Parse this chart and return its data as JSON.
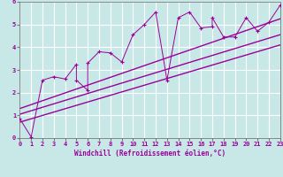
{
  "scatter_x": [
    0,
    1,
    2,
    3,
    4,
    5,
    5,
    6,
    6,
    7,
    8,
    9,
    10,
    11,
    12,
    13,
    14,
    15,
    16,
    17,
    17,
    18,
    19,
    20,
    21,
    22,
    23
  ],
  "scatter_y": [
    0.85,
    0.05,
    2.55,
    2.7,
    2.6,
    3.25,
    2.55,
    2.1,
    3.3,
    3.8,
    3.75,
    3.35,
    4.55,
    5.0,
    5.55,
    2.55,
    5.3,
    5.55,
    4.85,
    4.9,
    5.3,
    4.45,
    4.45,
    5.3,
    4.7,
    5.1,
    5.85
  ],
  "line1_x": [
    0,
    23
  ],
  "line1_y": [
    1.05,
    4.55
  ],
  "line2_x": [
    0,
    23
  ],
  "line2_y": [
    1.3,
    5.25
  ],
  "line3_x": [
    0,
    23
  ],
  "line3_y": [
    0.7,
    4.1
  ],
  "scatter_color": "#990099",
  "line_color": "#990099",
  "bg_color": "#c8e8e8",
  "grid_color": "#ffffff",
  "xlabel": "Windchill (Refroidissement éolien,°C)",
  "xlim": [
    0,
    23
  ],
  "ylim": [
    0,
    6
  ],
  "xticks": [
    0,
    1,
    2,
    3,
    4,
    5,
    6,
    7,
    8,
    9,
    10,
    11,
    12,
    13,
    14,
    15,
    16,
    17,
    18,
    19,
    20,
    21,
    22,
    23
  ],
  "yticks": [
    0,
    1,
    2,
    3,
    4,
    5,
    6
  ],
  "xlabel_fontsize": 5.5,
  "tick_fontsize": 5.0
}
